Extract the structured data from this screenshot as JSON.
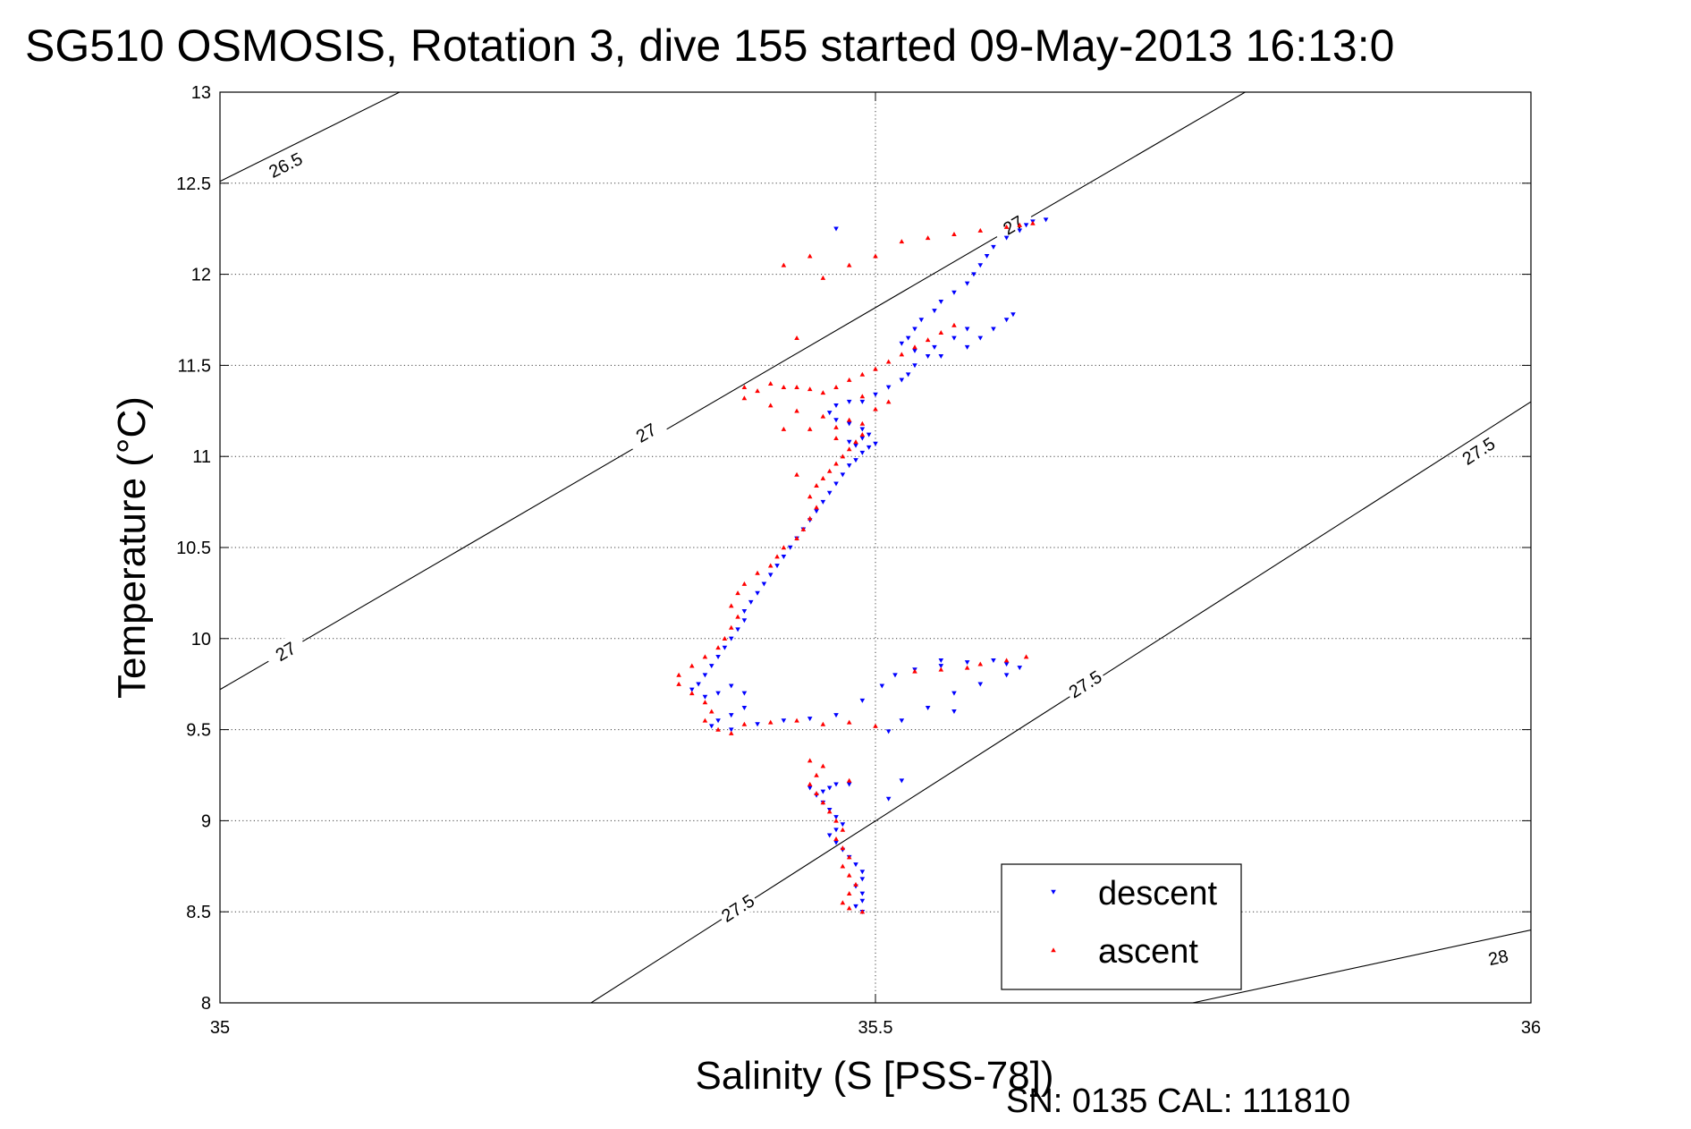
{
  "chart_data": {
    "type": "scatter",
    "title": "SG510 OSMOSIS, Rotation 3, dive 155 started 09-May-2013 16:13:0",
    "xlabel": "Salinity (S [PSS-78])",
    "ylabel": "Temperature (°C)",
    "xlim": [
      35,
      36
    ],
    "ylim": [
      8,
      13
    ],
    "xticks": [
      35,
      35.5,
      36
    ],
    "xtick_labels": [
      "35",
      "35.5",
      "36"
    ],
    "yticks": [
      8,
      8.5,
      9,
      9.5,
      10,
      10.5,
      11,
      11.5,
      12,
      12.5,
      13
    ],
    "ytick_labels": [
      "8",
      "8.5",
      "9",
      "9.5",
      "10",
      "10.5",
      "11",
      "11.5",
      "12",
      "12.5",
      "13"
    ],
    "grid": true,
    "legend_position": "bottom-right",
    "footer": "SN: 0135  CAL: 111810",
    "density_contours": [
      {
        "label": "26.5",
        "points": [
          [
            35,
            12.51
          ],
          [
            35.137,
            13.0
          ]
        ],
        "label_at": [
          [
            35.05,
            12.6
          ]
        ]
      },
      {
        "label": "27",
        "points": [
          [
            35,
            9.72
          ],
          [
            35.782,
            13.0
          ]
        ],
        "label_at": [
          [
            35.05,
            9.93
          ],
          [
            35.325,
            11.13
          ],
          [
            35.605,
            12.27
          ]
        ]
      },
      {
        "label": "27.5",
        "points": [
          [
            35.283,
            8.0
          ],
          [
            36,
            11.3
          ]
        ],
        "label_at": [
          [
            35.395,
            8.52
          ],
          [
            35.66,
            9.75
          ],
          [
            35.96,
            11.03
          ]
        ]
      },
      {
        "label": "28",
        "points": [
          [
            35.742,
            8.0
          ],
          [
            36,
            8.4
          ]
        ],
        "label_at": [
          [
            35.975,
            8.25
          ]
        ]
      }
    ],
    "series": [
      {
        "name": "descent",
        "color": "#0000ff",
        "marker": "triangle-down",
        "points": [
          [
            35.63,
            12.3
          ],
          [
            35.62,
            12.29
          ],
          [
            35.615,
            12.27
          ],
          [
            35.61,
            12.24
          ],
          [
            35.6,
            12.2
          ],
          [
            35.59,
            12.15
          ],
          [
            35.585,
            12.1
          ],
          [
            35.58,
            12.05
          ],
          [
            35.575,
            12.0
          ],
          [
            35.57,
            11.95
          ],
          [
            35.56,
            11.9
          ],
          [
            35.55,
            11.85
          ],
          [
            35.545,
            11.8
          ],
          [
            35.535,
            11.75
          ],
          [
            35.53,
            11.7
          ],
          [
            35.525,
            11.65
          ],
          [
            35.52,
            11.62
          ],
          [
            35.53,
            11.58
          ],
          [
            35.55,
            11.55
          ],
          [
            35.57,
            11.6
          ],
          [
            35.58,
            11.65
          ],
          [
            35.59,
            11.7
          ],
          [
            35.6,
            11.75
          ],
          [
            35.605,
            11.78
          ],
          [
            35.57,
            11.7
          ],
          [
            35.56,
            11.65
          ],
          [
            35.545,
            11.6
          ],
          [
            35.54,
            11.55
          ],
          [
            35.53,
            11.5
          ],
          [
            35.525,
            11.45
          ],
          [
            35.52,
            11.42
          ],
          [
            35.51,
            11.38
          ],
          [
            35.5,
            11.34
          ],
          [
            35.49,
            11.3
          ],
          [
            35.48,
            11.3
          ],
          [
            35.47,
            11.28
          ],
          [
            35.465,
            11.24
          ],
          [
            35.47,
            11.2
          ],
          [
            35.48,
            11.18
          ],
          [
            35.49,
            11.15
          ],
          [
            35.495,
            11.12
          ],
          [
            35.49,
            11.1
          ],
          [
            35.48,
            11.08
          ],
          [
            35.485,
            11.06
          ],
          [
            35.495,
            11.05
          ],
          [
            35.5,
            11.07
          ],
          [
            35.49,
            11.02
          ],
          [
            35.485,
            10.98
          ],
          [
            35.48,
            10.95
          ],
          [
            35.475,
            10.9
          ],
          [
            35.47,
            10.85
          ],
          [
            35.465,
            10.8
          ],
          [
            35.46,
            10.75
          ],
          [
            35.455,
            10.7
          ],
          [
            35.45,
            10.65
          ],
          [
            35.445,
            10.6
          ],
          [
            35.44,
            10.55
          ],
          [
            35.435,
            10.5
          ],
          [
            35.43,
            10.45
          ],
          [
            35.425,
            10.4
          ],
          [
            35.42,
            10.35
          ],
          [
            35.415,
            10.3
          ],
          [
            35.41,
            10.25
          ],
          [
            35.405,
            10.2
          ],
          [
            35.4,
            10.15
          ],
          [
            35.4,
            10.1
          ],
          [
            35.395,
            10.05
          ],
          [
            35.39,
            10.0
          ],
          [
            35.385,
            9.95
          ],
          [
            35.38,
            9.9
          ],
          [
            35.375,
            9.85
          ],
          [
            35.37,
            9.8
          ],
          [
            35.365,
            9.75
          ],
          [
            35.36,
            9.72
          ],
          [
            35.37,
            9.68
          ],
          [
            35.38,
            9.7
          ],
          [
            35.39,
            9.74
          ],
          [
            35.4,
            9.7
          ],
          [
            35.4,
            9.62
          ],
          [
            35.39,
            9.58
          ],
          [
            35.38,
            9.55
          ],
          [
            35.375,
            9.52
          ],
          [
            35.39,
            9.5
          ],
          [
            35.41,
            9.53
          ],
          [
            35.43,
            9.55
          ],
          [
            35.45,
            9.56
          ],
          [
            35.47,
            9.58
          ],
          [
            35.49,
            9.66
          ],
          [
            35.505,
            9.74
          ],
          [
            35.515,
            9.8
          ],
          [
            35.53,
            9.83
          ],
          [
            35.55,
            9.85
          ],
          [
            35.57,
            9.87
          ],
          [
            35.59,
            9.88
          ],
          [
            35.6,
            9.86
          ],
          [
            35.61,
            9.84
          ],
          [
            35.6,
            9.8
          ],
          [
            35.58,
            9.75
          ],
          [
            35.56,
            9.7
          ],
          [
            35.54,
            9.62
          ],
          [
            35.52,
            9.55
          ],
          [
            35.51,
            9.49
          ],
          [
            35.47,
            12.25
          ],
          [
            35.47,
            9.2
          ],
          [
            35.465,
            9.18
          ],
          [
            35.46,
            9.16
          ],
          [
            35.455,
            9.14
          ],
          [
            35.46,
            9.1
          ],
          [
            35.465,
            9.06
          ],
          [
            35.47,
            9.02
          ],
          [
            35.475,
            8.98
          ],
          [
            35.47,
            8.95
          ],
          [
            35.465,
            8.92
          ],
          [
            35.47,
            8.88
          ],
          [
            35.475,
            8.84
          ],
          [
            35.48,
            8.8
          ],
          [
            35.485,
            8.76
          ],
          [
            35.49,
            8.72
          ],
          [
            35.49,
            8.68
          ],
          [
            35.485,
            8.64
          ],
          [
            35.49,
            8.6
          ],
          [
            35.49,
            8.56
          ],
          [
            35.485,
            8.53
          ],
          [
            35.49,
            8.5
          ],
          [
            35.48,
            9.2
          ],
          [
            35.51,
            9.12
          ],
          [
            35.52,
            9.22
          ],
          [
            35.45,
            9.18
          ],
          [
            35.55,
            9.88
          ],
          [
            35.56,
            9.6
          ]
        ]
      },
      {
        "name": "ascent",
        "color": "#ff0000",
        "marker": "triangle-up",
        "points": [
          [
            35.62,
            12.28
          ],
          [
            35.61,
            12.27
          ],
          [
            35.6,
            12.26
          ],
          [
            35.58,
            12.24
          ],
          [
            35.56,
            12.22
          ],
          [
            35.54,
            12.2
          ],
          [
            35.52,
            12.18
          ],
          [
            35.5,
            12.1
          ],
          [
            35.48,
            12.05
          ],
          [
            35.46,
            11.98
          ],
          [
            35.44,
            11.65
          ],
          [
            35.56,
            11.72
          ],
          [
            35.55,
            11.68
          ],
          [
            35.54,
            11.64
          ],
          [
            35.53,
            11.6
          ],
          [
            35.52,
            11.56
          ],
          [
            35.51,
            11.52
          ],
          [
            35.5,
            11.48
          ],
          [
            35.49,
            11.45
          ],
          [
            35.48,
            11.42
          ],
          [
            35.47,
            11.38
          ],
          [
            35.46,
            11.35
          ],
          [
            35.45,
            11.37
          ],
          [
            35.43,
            11.38
          ],
          [
            35.41,
            11.36
          ],
          [
            35.4,
            11.32
          ],
          [
            35.42,
            11.28
          ],
          [
            35.44,
            11.25
          ],
          [
            35.46,
            11.22
          ],
          [
            35.48,
            11.2
          ],
          [
            35.49,
            11.18
          ],
          [
            35.47,
            11.16
          ],
          [
            35.45,
            11.15
          ],
          [
            35.43,
            11.15
          ],
          [
            35.49,
            11.12
          ],
          [
            35.485,
            11.08
          ],
          [
            35.48,
            11.04
          ],
          [
            35.475,
            11.0
          ],
          [
            35.47,
            10.96
          ],
          [
            35.465,
            10.92
          ],
          [
            35.46,
            10.88
          ],
          [
            35.455,
            10.84
          ],
          [
            35.45,
            10.78
          ],
          [
            35.455,
            10.72
          ],
          [
            35.45,
            10.66
          ],
          [
            35.445,
            10.6
          ],
          [
            35.44,
            10.55
          ],
          [
            35.43,
            10.5
          ],
          [
            35.425,
            10.45
          ],
          [
            35.42,
            10.4
          ],
          [
            35.41,
            10.36
          ],
          [
            35.4,
            10.3
          ],
          [
            35.395,
            10.25
          ],
          [
            35.39,
            10.18
          ],
          [
            35.395,
            10.12
          ],
          [
            35.39,
            10.06
          ],
          [
            35.385,
            10.0
          ],
          [
            35.38,
            9.95
          ],
          [
            35.37,
            9.9
          ],
          [
            35.36,
            9.85
          ],
          [
            35.35,
            9.8
          ],
          [
            35.35,
            9.75
          ],
          [
            35.36,
            9.7
          ],
          [
            35.37,
            9.65
          ],
          [
            35.375,
            9.6
          ],
          [
            35.37,
            9.55
          ],
          [
            35.38,
            9.5
          ],
          [
            35.39,
            9.48
          ],
          [
            35.4,
            9.53
          ],
          [
            35.42,
            9.54
          ],
          [
            35.44,
            9.55
          ],
          [
            35.46,
            9.53
          ],
          [
            35.48,
            9.54
          ],
          [
            35.5,
            9.52
          ],
          [
            35.53,
            9.82
          ],
          [
            35.55,
            9.83
          ],
          [
            35.57,
            9.84
          ],
          [
            35.58,
            9.86
          ],
          [
            35.6,
            9.88
          ],
          [
            35.615,
            9.9
          ],
          [
            35.4,
            11.38
          ],
          [
            35.42,
            11.4
          ],
          [
            35.44,
            11.38
          ],
          [
            35.46,
            9.3
          ],
          [
            35.455,
            9.25
          ],
          [
            35.45,
            9.2
          ],
          [
            35.455,
            9.15
          ],
          [
            35.46,
            9.1
          ],
          [
            35.465,
            9.05
          ],
          [
            35.47,
            9.0
          ],
          [
            35.475,
            8.95
          ],
          [
            35.47,
            8.9
          ],
          [
            35.475,
            8.85
          ],
          [
            35.48,
            8.8
          ],
          [
            35.475,
            8.75
          ],
          [
            35.48,
            8.7
          ],
          [
            35.485,
            8.65
          ],
          [
            35.48,
            8.6
          ],
          [
            35.475,
            8.55
          ],
          [
            35.48,
            8.52
          ],
          [
            35.49,
            8.5
          ],
          [
            35.45,
            9.33
          ],
          [
            35.48,
            9.22
          ],
          [
            35.44,
            10.9
          ],
          [
            35.5,
            11.26
          ],
          [
            35.51,
            11.3
          ],
          [
            35.49,
            11.33
          ],
          [
            35.47,
            11.1
          ],
          [
            35.43,
            12.05
          ],
          [
            35.45,
            12.1
          ]
        ]
      }
    ]
  }
}
